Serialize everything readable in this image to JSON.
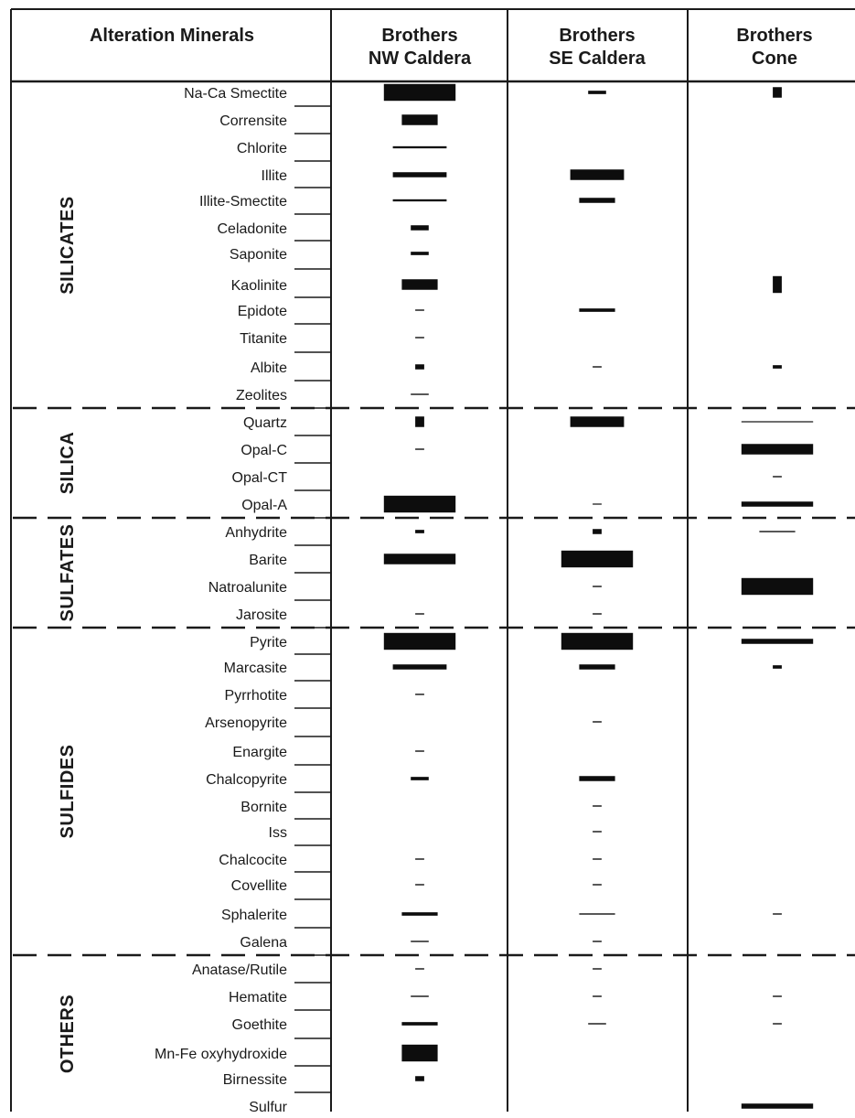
{
  "header": {
    "col0": "Alteration Minerals",
    "col1_line1": "Brothers",
    "col1_line2": "NW Caldera",
    "col2_line1": "Brothers",
    "col2_line2": "SE Caldera",
    "col3_line1": "Brothers",
    "col3_line2": "Cone"
  },
  "groups": [
    {
      "name": "SILICATES",
      "first": 0,
      "last": 11
    },
    {
      "name": "SILICA",
      "first": 12,
      "last": 15
    },
    {
      "name": "SULFATES",
      "first": 16,
      "last": 19
    },
    {
      "name": "SULFIDES",
      "first": 20,
      "last": 31
    },
    {
      "name": "OTHERS",
      "first": 32,
      "last": 37
    }
  ],
  "minerals": [
    "Na-Ca Smectite",
    "Corrensite",
    "Chlorite",
    "Illite",
    "Illite-Smectite",
    "Celadonite",
    "Saponite",
    "Kaolinite",
    "Epidote",
    "Titanite",
    "Albite",
    "Zeolites",
    "Quartz",
    "Opal-C",
    "Opal-CT",
    "Opal-A",
    "Anhydrite",
    "Barite",
    "Natroalunite",
    "Jarosite",
    "Pyrite",
    "Marcasite",
    "Pyrrhotite",
    "Arsenopyrite",
    "Enargite",
    "Chalcopyrite",
    "Bornite",
    "Iss",
    "Chalcocite",
    "Covellite",
    "Sphalerite",
    "Galena",
    "Anatase/Rutile",
    "Hematite",
    "Goethite",
    "Mn-Fe oxyhydroxide",
    "Birnessite",
    "Sulfur"
  ],
  "abundance_note": "Each value is [relative width, relative thickness] of the bar; null = not reported",
  "abundance": {
    "NW Caldera": [
      [
        8,
        4
      ],
      [
        4,
        2.5
      ],
      [
        6,
        0.5
      ],
      [
        6,
        1.2
      ],
      [
        6,
        0.5
      ],
      [
        2,
        1.2
      ],
      [
        2,
        0.8
      ],
      [
        4,
        2.5
      ],
      [
        1,
        0.3
      ],
      [
        1,
        0.3
      ],
      [
        1,
        1.2
      ],
      [
        2,
        0.3
      ],
      [
        1,
        2.5
      ],
      [
        1,
        0.3
      ],
      null,
      [
        8,
        4
      ],
      [
        1,
        0.8
      ],
      [
        8,
        2.5
      ],
      null,
      [
        1,
        0.3
      ],
      [
        8,
        4
      ],
      [
        6,
        1.2
      ],
      [
        1,
        0.3
      ],
      null,
      [
        1,
        0.3
      ],
      [
        2,
        0.8
      ],
      null,
      null,
      [
        1,
        0.3
      ],
      [
        1,
        0.3
      ],
      [
        4,
        0.8
      ],
      [
        2,
        0.3
      ],
      [
        1,
        0.3
      ],
      [
        2,
        0.3
      ],
      [
        4,
        0.8
      ],
      [
        4,
        4
      ],
      [
        1,
        1.2
      ],
      null
    ],
    "SE Caldera": [
      [
        2,
        0.8
      ],
      null,
      null,
      [
        6,
        2.5
      ],
      [
        4,
        1.2
      ],
      null,
      null,
      null,
      [
        4,
        0.8
      ],
      null,
      [
        1,
        0.3
      ],
      null,
      [
        6,
        2.5
      ],
      null,
      null,
      [
        1,
        0.1
      ],
      [
        1,
        1.2
      ],
      [
        8,
        4
      ],
      [
        1,
        0.3
      ],
      [
        1,
        0.3
      ],
      [
        8,
        4
      ],
      [
        4,
        1.2
      ],
      null,
      [
        1,
        0.3
      ],
      null,
      [
        4,
        1.2
      ],
      [
        1,
        0.3
      ],
      [
        1,
        0.3
      ],
      [
        1,
        0.3
      ],
      [
        1,
        0.3
      ],
      [
        4,
        0.3
      ],
      [
        1,
        0.3
      ],
      [
        1,
        0.3
      ],
      [
        1,
        0.3
      ],
      [
        2,
        0.3
      ],
      null,
      null,
      null
    ],
    "Cone": [
      [
        1,
        2.5
      ],
      null,
      null,
      null,
      null,
      null,
      null,
      [
        1,
        4
      ],
      null,
      null,
      [
        1,
        0.8
      ],
      null,
      [
        8,
        0.2
      ],
      [
        8,
        2.5
      ],
      [
        1,
        0.3
      ],
      [
        8,
        1.2
      ],
      [
        4,
        0.3
      ],
      null,
      [
        8,
        4
      ],
      null,
      [
        8,
        1.2
      ],
      [
        1,
        0.8
      ],
      null,
      null,
      null,
      null,
      null,
      null,
      null,
      null,
      [
        1,
        0.3
      ],
      null,
      null,
      [
        1,
        0.3
      ],
      [
        1,
        0.3
      ],
      null,
      null,
      [
        8,
        1.2
      ]
    ]
  },
  "columns_order": [
    "NW Caldera",
    "SE Caldera",
    "Cone"
  ]
}
